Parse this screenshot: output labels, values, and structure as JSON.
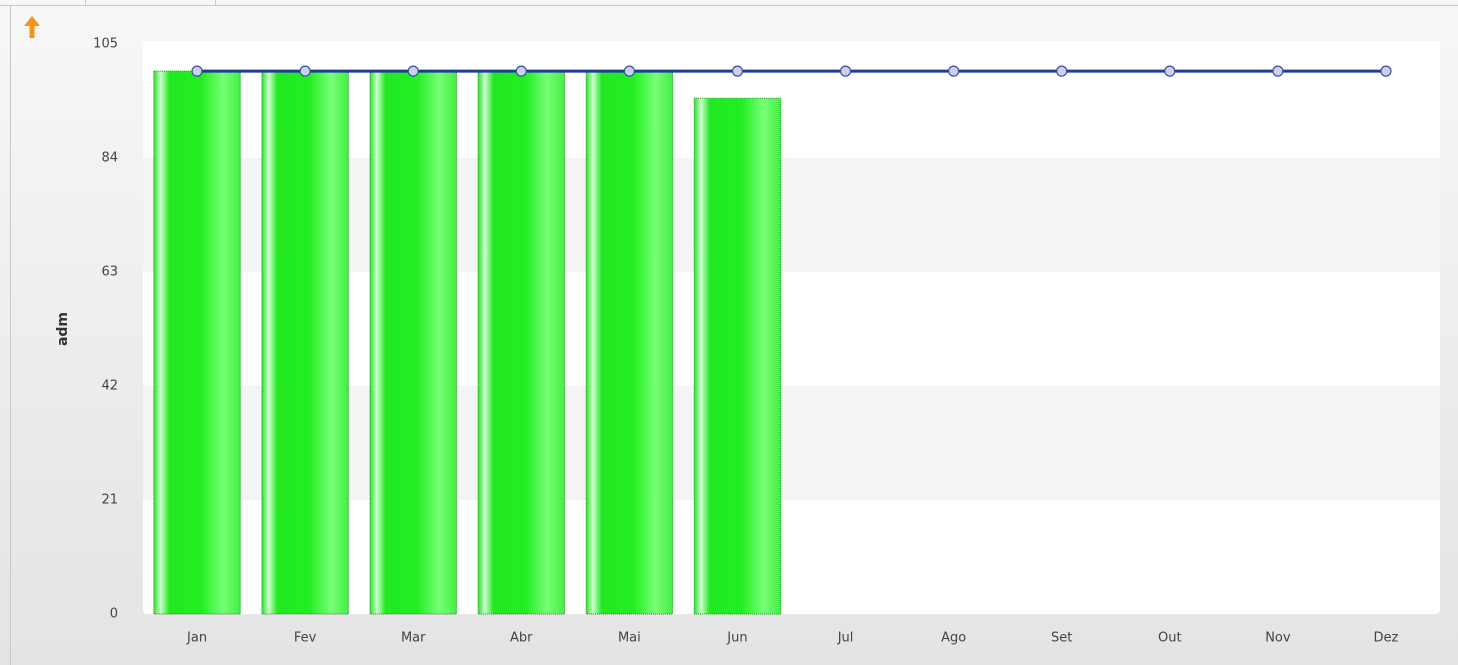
{
  "chart_data": {
    "type": "bar",
    "y_label": "adm",
    "categories": [
      "Jan",
      "Fev",
      "Mar",
      "Abr",
      "Mai",
      "Jun",
      "Jul",
      "Ago",
      "Set",
      "Out",
      "Nov",
      "Dez"
    ],
    "series": [
      {
        "type": "bar",
        "color": "#22ee22",
        "values": [
          100,
          100,
          100,
          100,
          100,
          95,
          null,
          null,
          null,
          null,
          null,
          null
        ]
      },
      {
        "type": "line",
        "color": "#1f3a93",
        "values": [
          100,
          100,
          100,
          100,
          100,
          100,
          100,
          100,
          100,
          100,
          100,
          100
        ]
      }
    ],
    "ylim": [
      0,
      105
    ],
    "yticks": [
      0,
      21,
      42,
      63,
      84,
      105
    ],
    "grid": true
  }
}
